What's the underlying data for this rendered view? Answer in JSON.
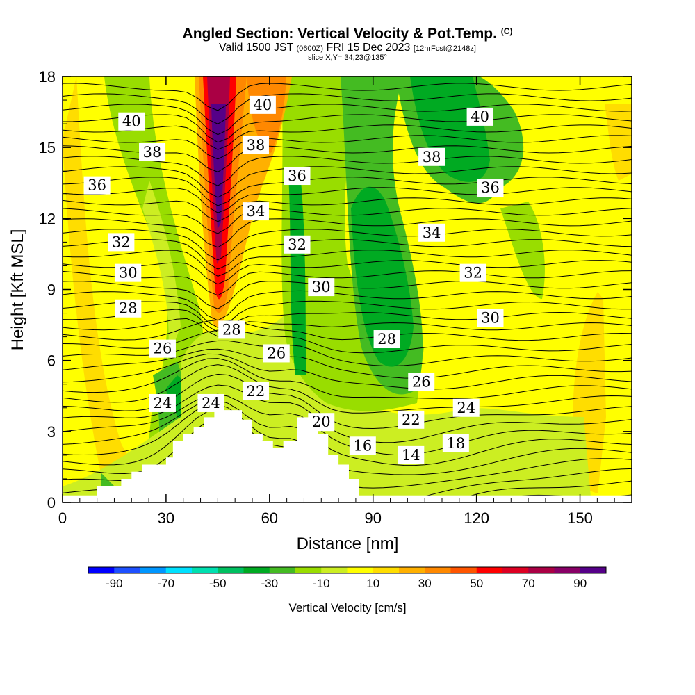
{
  "title": "Angled Section: Vertical Velocity & Pot.Temp.",
  "title_unit": "(C)",
  "subtitle_valid": "Valid 1500 JST",
  "subtitle_utc": "(0600Z)",
  "subtitle_date": "FRI 15 Dec 2023",
  "subtitle_fcst": "[12hrFcst@2148z]",
  "slice": "slice X,Y= 34,23@135°",
  "chart_data": {
    "type": "contour-cross-section",
    "xlabel": "Distance [nm]",
    "ylabel": "Height [Kft MSL]",
    "xlim": [
      0,
      165
    ],
    "ylim": [
      0,
      18
    ],
    "xticks": [
      "0",
      "30",
      "60",
      "90",
      "120",
      "150"
    ],
    "yticks": [
      "0",
      "3",
      "6",
      "9",
      "12",
      "15",
      "18"
    ],
    "colorbar": {
      "title": "Vertical Velocity [cm/s]",
      "tick_labels": [
        "-90",
        "-70",
        "-50",
        "-30",
        "-10",
        "10",
        "30",
        "50",
        "70",
        "90"
      ],
      "colors": [
        "#0000ff",
        "#1e50ff",
        "#0096ff",
        "#00e1ff",
        "#00e0b0",
        "#00c060",
        "#00aa22",
        "#44bb22",
        "#99dd00",
        "#ccee22",
        "#ffff00",
        "#ffdd00",
        "#ffb000",
        "#ff8800",
        "#ff5500",
        "#ff0000",
        "#dd0022",
        "#aa0044",
        "#880066",
        "#550088"
      ]
    },
    "theta_labels": [
      {
        "text": "40",
        "x": 20,
        "y": 16.1
      },
      {
        "text": "38",
        "x": 26,
        "y": 14.8
      },
      {
        "text": "36",
        "x": 10,
        "y": 13.4
      },
      {
        "text": "32",
        "x": 17,
        "y": 11.0
      },
      {
        "text": "30",
        "x": 19,
        "y": 9.7
      },
      {
        "text": "28",
        "x": 19,
        "y": 8.2
      },
      {
        "text": "26",
        "x": 29,
        "y": 6.5
      },
      {
        "text": "24",
        "x": 29,
        "y": 4.2
      },
      {
        "text": "24",
        "x": 43,
        "y": 4.2
      },
      {
        "text": "28",
        "x": 49,
        "y": 7.3
      },
      {
        "text": "26",
        "x": 62,
        "y": 6.3
      },
      {
        "text": "22",
        "x": 56,
        "y": 4.7
      },
      {
        "text": "20",
        "x": 75,
        "y": 3.4
      },
      {
        "text": "16",
        "x": 87,
        "y": 2.4
      },
      {
        "text": "14",
        "x": 101,
        "y": 2.0
      },
      {
        "text": "18",
        "x": 114,
        "y": 2.5
      },
      {
        "text": "22",
        "x": 101,
        "y": 3.5
      },
      {
        "text": "24",
        "x": 117,
        "y": 4.0
      },
      {
        "text": "26",
        "x": 104,
        "y": 5.1
      },
      {
        "text": "28",
        "x": 94,
        "y": 6.9
      },
      {
        "text": "30",
        "x": 124,
        "y": 7.8
      },
      {
        "text": "30",
        "x": 75,
        "y": 9.1
      },
      {
        "text": "32",
        "x": 119,
        "y": 9.7
      },
      {
        "text": "32",
        "x": 68,
        "y": 10.9
      },
      {
        "text": "34",
        "x": 56,
        "y": 12.3
      },
      {
        "text": "34",
        "x": 107,
        "y": 11.4
      },
      {
        "text": "36",
        "x": 68,
        "y": 13.8
      },
      {
        "text": "36",
        "x": 124,
        "y": 13.3
      },
      {
        "text": "38",
        "x": 56,
        "y": 15.1
      },
      {
        "text": "38",
        "x": 107,
        "y": 14.6
      },
      {
        "text": "40",
        "x": 58,
        "y": 16.8
      },
      {
        "text": "40",
        "x": 121,
        "y": 16.3
      }
    ],
    "terrain_profile": [
      [
        0,
        0.3
      ],
      [
        10,
        0.3
      ],
      [
        10,
        0.7
      ],
      [
        17,
        0.7
      ],
      [
        17,
        1.0
      ],
      [
        20,
        1.0
      ],
      [
        20,
        1.3
      ],
      [
        23,
        1.3
      ],
      [
        23,
        1.6
      ],
      [
        30,
        1.6
      ],
      [
        30,
        1.9
      ],
      [
        32,
        1.9
      ],
      [
        32,
        2.6
      ],
      [
        35,
        2.6
      ],
      [
        35,
        2.9
      ],
      [
        38,
        2.9
      ],
      [
        38,
        3.2
      ],
      [
        41,
        3.2
      ],
      [
        41,
        3.6
      ],
      [
        44,
        3.6
      ],
      [
        44,
        3.9
      ],
      [
        52,
        3.9
      ],
      [
        52,
        3.5
      ],
      [
        55,
        3.5
      ],
      [
        55,
        2.9
      ],
      [
        58,
        2.9
      ],
      [
        58,
        2.6
      ],
      [
        61,
        2.6
      ],
      [
        61,
        2.3
      ],
      [
        64,
        2.3
      ],
      [
        64,
        2.6
      ],
      [
        68,
        2.6
      ],
      [
        68,
        3.6
      ],
      [
        74,
        3.6
      ],
      [
        74,
        2.9
      ],
      [
        77,
        2.9
      ],
      [
        77,
        2.0
      ],
      [
        80,
        2.0
      ],
      [
        80,
        1.6
      ],
      [
        83,
        1.6
      ],
      [
        83,
        1.0
      ],
      [
        86,
        1.0
      ],
      [
        86,
        0.3
      ],
      [
        165,
        0.3
      ]
    ]
  }
}
